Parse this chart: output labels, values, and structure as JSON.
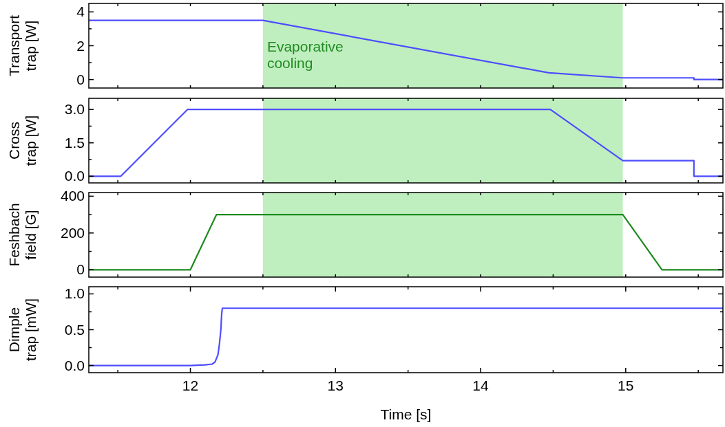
{
  "chart_data": [
    {
      "type": "line",
      "ylabel": "Transport trap [W]",
      "xlim": [
        11.3,
        15.67
      ],
      "xticks": [
        {
          "value": 11.5,
          "label": null
        },
        {
          "value": 12,
          "label": null
        },
        {
          "value": 12.5,
          "label": null
        },
        {
          "value": 13,
          "label": null
        },
        {
          "value": 13.5,
          "label": null
        },
        {
          "value": 14,
          "label": null
        },
        {
          "value": 14.5,
          "label": null
        },
        {
          "value": 15,
          "label": null
        },
        {
          "value": 15.5,
          "label": null
        }
      ],
      "ylim": [
        -0.5,
        4.5
      ],
      "yticks": [
        0,
        {
          "value": 1,
          "label": null
        },
        2,
        {
          "value": 3,
          "label": null
        },
        4
      ],
      "tick_labels": "y",
      "grid": false,
      "bands": [
        {
          "axis": "x",
          "from": 12.5,
          "to": 14.98,
          "label": "Evaporative cooling",
          "color": "#bfeebf"
        }
      ],
      "series": [
        {
          "color": "#4d4dff",
          "x": [
            11.3,
            12.5,
            14.47,
            14.98,
            15.47,
            15.47,
            15.67
          ],
          "values": [
            3.5,
            3.5,
            0.4,
            0.1,
            0.1,
            0,
            0
          ]
        }
      ]
    },
    {
      "type": "line",
      "ylabel": "Cross trap [W]",
      "xlim": [
        11.3,
        15.67
      ],
      "xticks": [
        {
          "value": 11.5,
          "label": null
        },
        {
          "value": 12,
          "label": null
        },
        {
          "value": 12.5,
          "label": null
        },
        {
          "value": 13,
          "label": null
        },
        {
          "value": 13.5,
          "label": null
        },
        {
          "value": 14,
          "label": null
        },
        {
          "value": 14.5,
          "label": null
        },
        {
          "value": 15,
          "label": null
        },
        {
          "value": 15.5,
          "label": null
        }
      ],
      "ylim": [
        -0.3,
        3.5
      ],
      "yticks": [
        {
          "value": 0,
          "label": "0.0"
        },
        {
          "value": 0.75,
          "label": null
        },
        1.5,
        {
          "value": 2.25,
          "label": null
        },
        {
          "value": 3,
          "label": "3.0"
        }
      ],
      "tick_labels": "y",
      "grid": false,
      "bands": [
        {
          "axis": "x",
          "from": 12.5,
          "to": 14.98,
          "color": "#bfeebf"
        }
      ],
      "series": [
        {
          "color": "#4d4dff",
          "x": [
            11.3,
            11.52,
            11.98,
            14.48,
            14.98,
            15.47,
            15.47,
            15.67
          ],
          "values": [
            0,
            0,
            3,
            3,
            0.7,
            0.7,
            0,
            0
          ]
        }
      ]
    },
    {
      "type": "line",
      "ylabel": "Feshbach field [G]",
      "xlim": [
        11.3,
        15.67
      ],
      "xticks": [
        {
          "value": 11.5,
          "label": null
        },
        {
          "value": 12,
          "label": null
        },
        {
          "value": 12.5,
          "label": null
        },
        {
          "value": 13,
          "label": null
        },
        {
          "value": 13.5,
          "label": null
        },
        {
          "value": 14,
          "label": null
        },
        {
          "value": 14.5,
          "label": null
        },
        {
          "value": 15,
          "label": null
        },
        {
          "value": 15.5,
          "label": null
        }
      ],
      "ylim": [
        -40,
        420
      ],
      "yticks": [
        0,
        {
          "value": 100,
          "label": null
        },
        200,
        {
          "value": 300,
          "label": null
        },
        400
      ],
      "tick_labels": "y",
      "grid": false,
      "bands": [
        {
          "axis": "x",
          "from": 12.5,
          "to": 14.98,
          "color": "#bfeebf"
        }
      ],
      "series": [
        {
          "color": "#1e8a1e",
          "x": [
            11.3,
            12.0,
            12.18,
            14.98,
            15.25,
            15.67
          ],
          "values": [
            0,
            0,
            300,
            300,
            0,
            0
          ]
        }
      ]
    },
    {
      "type": "line",
      "ylabel": "Dimple trap [mW]",
      "xlabel": "Time [s]",
      "xlim": [
        11.3,
        15.67
      ],
      "xticks": [
        {
          "value": 11.5,
          "label": null
        },
        12,
        {
          "value": 12.5,
          "label": null
        },
        13,
        {
          "value": 13.5,
          "label": null
        },
        14,
        {
          "value": 14.5,
          "label": null
        },
        15,
        {
          "value": 15.5,
          "label": null
        }
      ],
      "ylim": [
        -0.1,
        1.1
      ],
      "yticks": [
        {
          "value": 0,
          "label": "0.0"
        },
        {
          "value": 0.25,
          "label": null
        },
        0.5,
        {
          "value": 0.75,
          "label": null
        },
        {
          "value": 1,
          "label": "1.0"
        }
      ],
      "grid": false,
      "series": [
        {
          "color": "#4d4dff",
          "x": [
            11.3,
            12.0,
            12.1,
            12.15,
            12.17,
            12.19,
            12.2,
            12.21,
            12.215,
            12.22,
            15.67
          ],
          "values": [
            0,
            0,
            0.01,
            0.02,
            0.05,
            0.15,
            0.3,
            0.5,
            0.7,
            0.8,
            0.8
          ]
        }
      ]
    }
  ]
}
